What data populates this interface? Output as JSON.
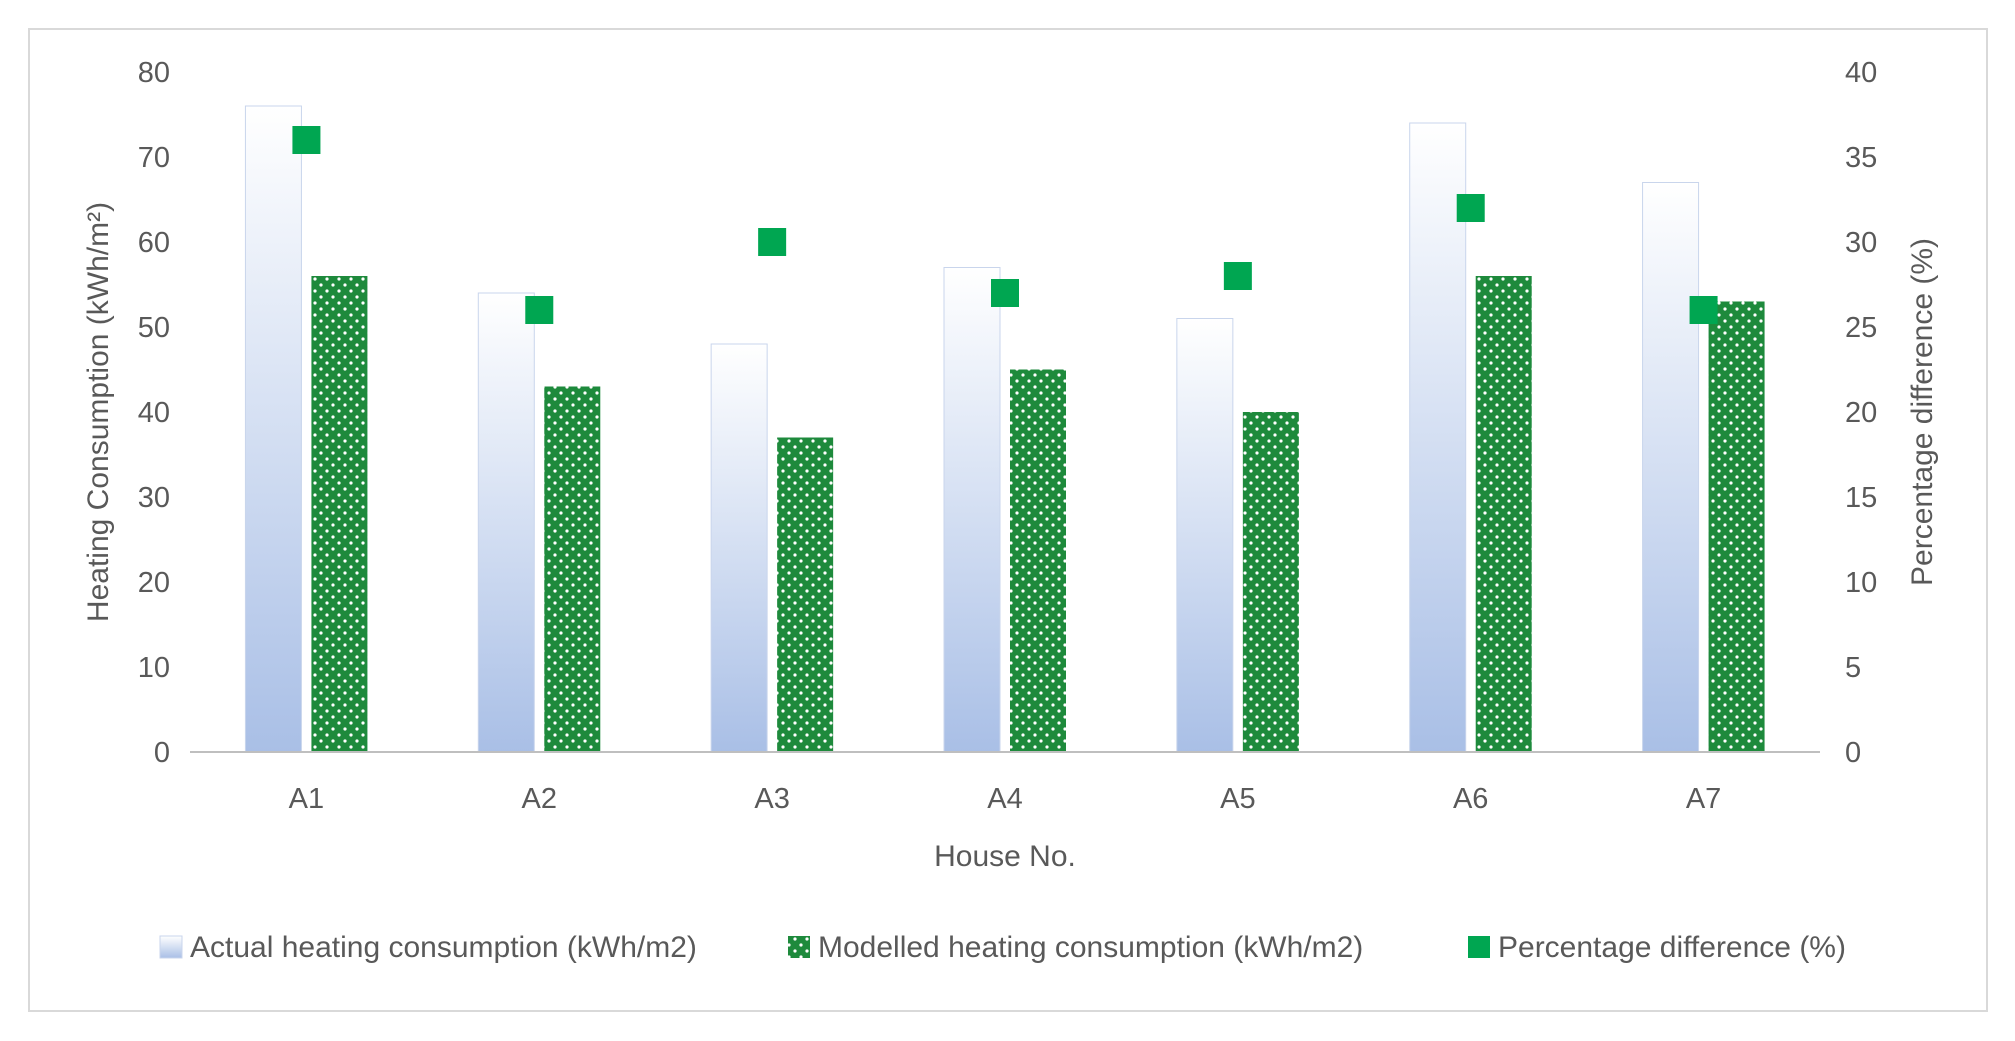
{
  "chart_data": {
    "type": "bar",
    "categories": [
      "A1",
      "A2",
      "A3",
      "A4",
      "A5",
      "A6",
      "A7"
    ],
    "series": [
      {
        "name": "Actual heating consumption (kWh/m2)",
        "kind": "bar",
        "axis": "left",
        "values": [
          76,
          54,
          48,
          57,
          51,
          74,
          67
        ]
      },
      {
        "name": "Modelled heating consumption (kWh/m2)",
        "kind": "bar",
        "axis": "left",
        "values": [
          56,
          43,
          37,
          45,
          40,
          56,
          53
        ]
      },
      {
        "name": "Percentage difference (%)",
        "kind": "marker",
        "axis": "right",
        "values": [
          36,
          26,
          30,
          27,
          28,
          32,
          26
        ]
      }
    ],
    "title": "",
    "xlabel": "House No.",
    "ylabel": "Heating Consumption (kWh/m²)",
    "y2label": "Percentage difference (%)",
    "ylim": [
      0,
      80
    ],
    "y2lim": [
      0,
      40
    ],
    "yticks": [
      "0",
      "10",
      "20",
      "30",
      "40",
      "50",
      "60",
      "70",
      "80"
    ],
    "y2ticks": [
      "0",
      "5",
      "10",
      "15",
      "20",
      "25",
      "30",
      "35",
      "40"
    ],
    "grid": false,
    "legend_position": "bottom",
    "colors": {
      "actual_top": "#ffffff",
      "actual_bottom": "#a9bfe6",
      "actual_edge": "#c9d5ec",
      "modelled": "#1e8a3c",
      "modelled_dots": "#ffffff",
      "marker": "#00a651",
      "axis": "#bfbfbf"
    }
  }
}
